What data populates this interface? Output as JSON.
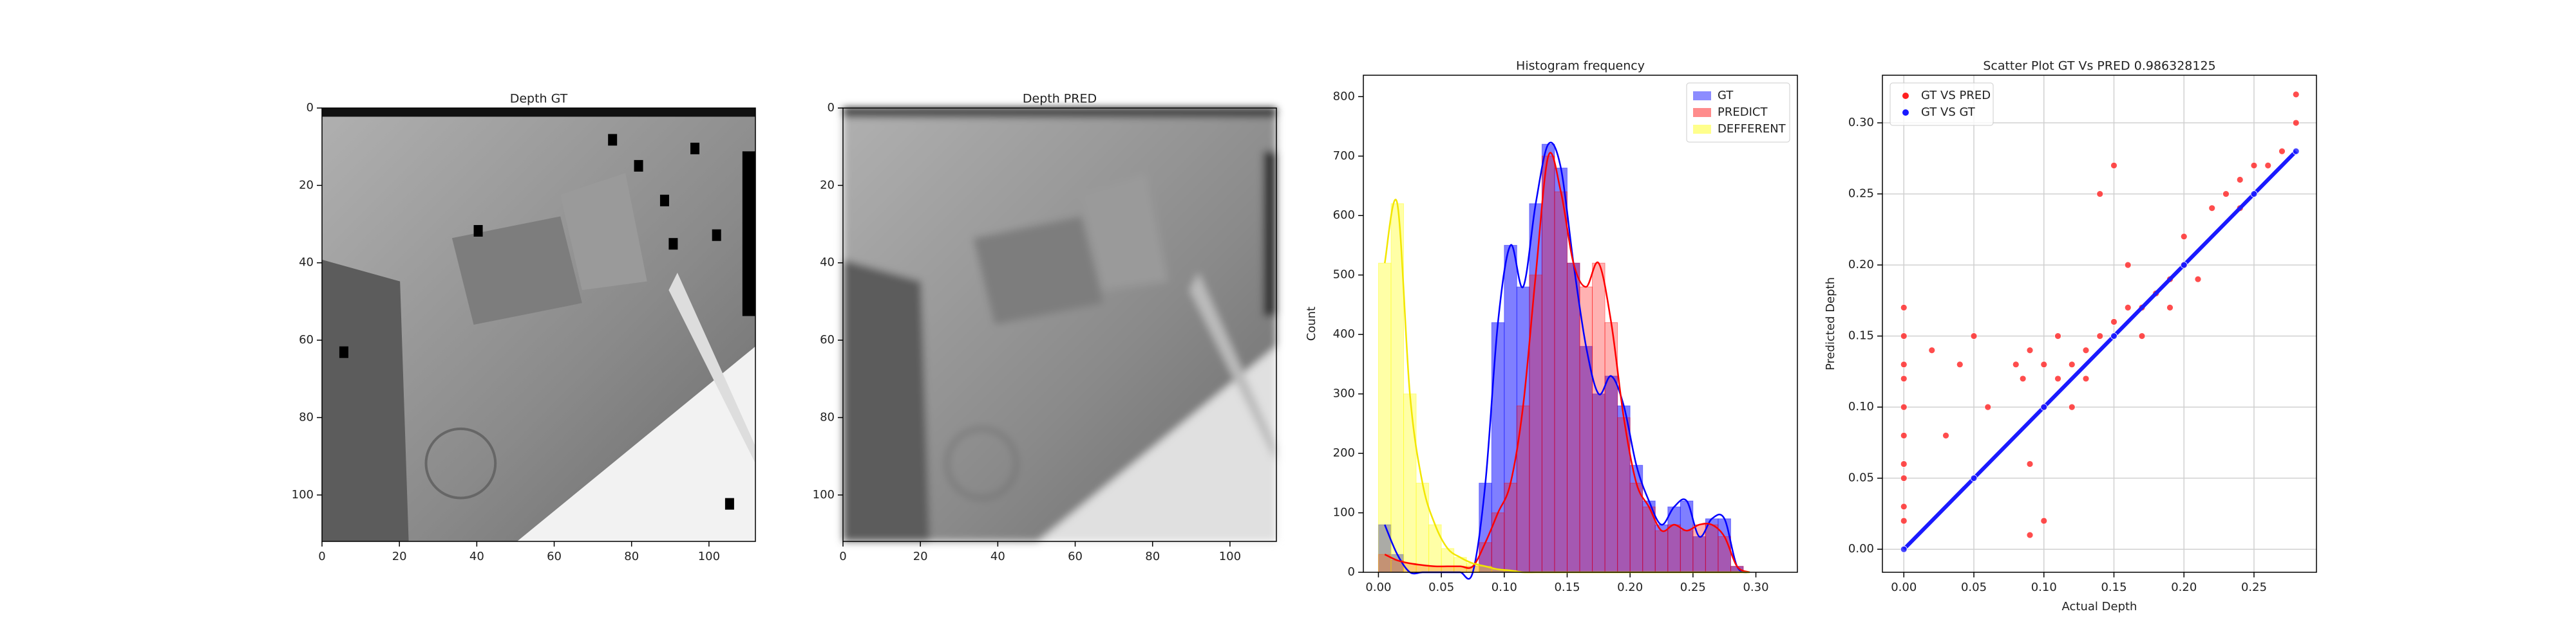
{
  "chart_data": [
    {
      "type": "image",
      "title": "Depth GT",
      "xlim": [
        0,
        112
      ],
      "ylim": [
        112,
        0
      ],
      "xticks": [
        0,
        20,
        40,
        60,
        80,
        100
      ],
      "yticks": [
        0,
        20,
        40,
        60,
        80,
        100
      ]
    },
    {
      "type": "image",
      "title": "Depth PRED",
      "xlim": [
        0,
        112
      ],
      "ylim": [
        112,
        0
      ],
      "xticks": [
        0,
        20,
        40,
        60,
        80,
        100
      ],
      "yticks": [
        0,
        20,
        40,
        60,
        80,
        100
      ]
    },
    {
      "type": "histogram",
      "title": "Histogram frequency",
      "ylabel": "Count",
      "legend": "upper right",
      "xlim": [
        -0.012,
        0.333
      ],
      "ylim": [
        0,
        836
      ],
      "xticks": [
        {
          "value": 0,
          "label": "0.00"
        },
        0.05,
        {
          "value": 0.1,
          "label": "0.10"
        },
        0.15,
        {
          "value": 0.2,
          "label": "0.20"
        },
        0.25,
        {
          "value": 0.3,
          "label": "0.30"
        }
      ],
      "yticks": [
        0,
        100,
        200,
        300,
        400,
        500,
        600,
        700,
        800
      ],
      "bins": [
        0,
        0.01,
        0.02,
        0.03,
        0.04,
        0.05,
        0.06,
        0.07,
        0.08,
        0.09,
        0.1,
        0.11,
        0.12,
        0.13,
        0.14,
        0.15,
        0.16,
        0.17,
        0.18,
        0.19,
        0.2,
        0.21,
        0.22,
        0.23,
        0.24,
        0.25,
        0.26,
        0.27,
        0.28,
        0.29,
        0.3
      ],
      "series": [
        {
          "name": "GT",
          "color": "#0000ff",
          "values": [
            80,
            30,
            0,
            0,
            0,
            0,
            0,
            0,
            150,
            420,
            550,
            480,
            620,
            720,
            680,
            520,
            380,
            300,
            330,
            280,
            180,
            120,
            80,
            110,
            120,
            60,
            90,
            90,
            10,
            0
          ]
        },
        {
          "name": "PREDICT",
          "color": "#ff0000",
          "values": [
            30,
            20,
            15,
            12,
            10,
            10,
            10,
            10,
            50,
            100,
            150,
            280,
            500,
            700,
            640,
            520,
            480,
            520,
            420,
            260,
            150,
            110,
            70,
            80,
            70,
            80,
            80,
            60,
            10,
            0
          ]
        },
        {
          "name": "DEFFERENT",
          "color": "#ffff00",
          "values": [
            520,
            620,
            300,
            150,
            80,
            40,
            25,
            15,
            10,
            5,
            3,
            0,
            0,
            0,
            0,
            0,
            0,
            0,
            0,
            0,
            0,
            0,
            0,
            0,
            0,
            0,
            0,
            0,
            0,
            0
          ]
        }
      ]
    },
    {
      "type": "scatter",
      "title": "Scatter Plot GT Vs PRED 0.986328125",
      "xlabel": "Actual Depth",
      "ylabel": "Predicted Depth",
      "legend": "upper left",
      "grid": true,
      "xlim": [
        -0.0153,
        0.2946
      ],
      "ylim": [
        -0.0162,
        0.3335
      ],
      "xticks": [
        {
          "value": 0,
          "label": "0.00"
        },
        0.05,
        {
          "value": 0.1,
          "label": "0.10"
        },
        0.15,
        {
          "value": 0.2,
          "label": "0.20"
        },
        0.25
      ],
      "yticks": [
        {
          "value": 0,
          "label": "0.00"
        },
        0.05,
        {
          "value": 0.1,
          "label": "0.10"
        },
        0.15,
        {
          "value": 0.2,
          "label": "0.20"
        },
        0.25,
        {
          "value": 0.3,
          "label": "0.30"
        }
      ],
      "series": [
        {
          "name": "GT VS PRED",
          "color": "#ff2020",
          "x": [
            0,
            0,
            0,
            0,
            0,
            0,
            0,
            0,
            0,
            0,
            0.08,
            0.085,
            0.09,
            0.1,
            0.1,
            0.11,
            0.12,
            0.13,
            0.14,
            0.15,
            0.16,
            0.17,
            0.18,
            0.19,
            0.2,
            0.21,
            0.22,
            0.23,
            0.24,
            0.25,
            0.26,
            0.27,
            0.28,
            0.28,
            0.14,
            0.15,
            0.16,
            0.12,
            0.09,
            0.1,
            0.09,
            0.04,
            0.05,
            0.02,
            0.03,
            0.06,
            0.11,
            0.13,
            0.17,
            0.19,
            0.2,
            0.24
          ],
          "y": [
            0.17,
            0.15,
            0.13,
            0.12,
            0.1,
            0.08,
            0.06,
            0.05,
            0.03,
            0.02,
            0.13,
            0.12,
            0.14,
            0.13,
            0.1,
            0.12,
            0.13,
            0.14,
            0.15,
            0.16,
            0.17,
            0.17,
            0.18,
            0.19,
            0.2,
            0.19,
            0.24,
            0.25,
            0.26,
            0.27,
            0.27,
            0.28,
            0.3,
            0.32,
            0.25,
            0.27,
            0.2,
            0.1,
            0.06,
            0.02,
            0.01,
            0.13,
            0.15,
            0.14,
            0.08,
            0.1,
            0.15,
            0.12,
            0.15,
            0.17,
            0.22,
            0.24
          ]
        },
        {
          "name": "GT VS GT",
          "color": "#1a1aff",
          "x": [
            0,
            0.05,
            0.1,
            0.15,
            0.2,
            0.25,
            0.28
          ],
          "y": [
            0,
            0.05,
            0.1,
            0.15,
            0.2,
            0.25,
            0.28
          ]
        }
      ]
    }
  ]
}
